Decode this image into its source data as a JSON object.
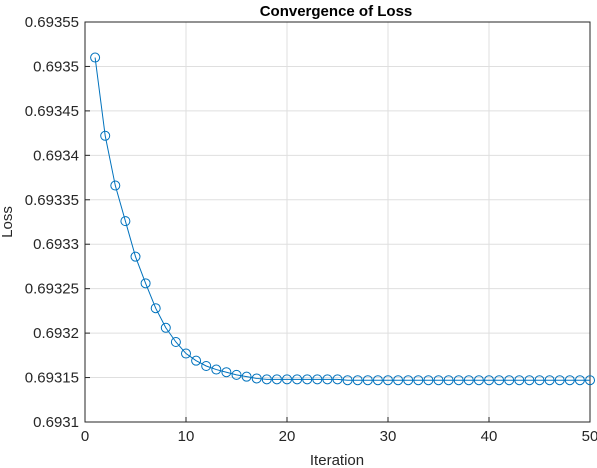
{
  "chart_data": {
    "type": "line",
    "title": "Convergence of Loss",
    "xlabel": "Iteration",
    "ylabel": "Loss",
    "xlim": [
      0,
      50
    ],
    "ylim": [
      0.6931,
      0.69355
    ],
    "xticks": [
      0,
      10,
      20,
      30,
      40,
      50
    ],
    "xtick_labels": [
      "0",
      "10",
      "20",
      "30",
      "40",
      "50"
    ],
    "yticks": [
      0.6931,
      0.69315,
      0.6932,
      0.69325,
      0.6933,
      0.69335,
      0.6934,
      0.69345,
      0.6935,
      0.69355
    ],
    "ytick_labels": [
      "0.6931",
      "0.69315",
      "0.6932",
      "0.69325",
      "0.6933",
      "0.69335",
      "0.6934",
      "0.69345",
      "0.6935",
      "0.69355"
    ],
    "grid": true,
    "marker": "circle",
    "series": [
      {
        "color": "#0072BD",
        "x": [
          1,
          2,
          3,
          4,
          5,
          6,
          7,
          8,
          9,
          10,
          11,
          12,
          13,
          14,
          15,
          16,
          17,
          18,
          19,
          20,
          21,
          22,
          23,
          24,
          25,
          26,
          27,
          28,
          29,
          30,
          31,
          32,
          33,
          34,
          35,
          36,
          37,
          38,
          39,
          40,
          41,
          42,
          43,
          44,
          45,
          46,
          47,
          48,
          49,
          50
        ],
        "values": [
          0.69351,
          0.693422,
          0.693366,
          0.693326,
          0.693286,
          0.693256,
          0.693228,
          0.693206,
          0.69319,
          0.693177,
          0.693169,
          0.693163,
          0.693159,
          0.693156,
          0.693153,
          0.693151,
          0.693149,
          0.693148,
          0.693148,
          0.693148,
          0.693148,
          0.693148,
          0.693148,
          0.693148,
          0.693148,
          0.693147,
          0.693147,
          0.693147,
          0.693147,
          0.693147,
          0.693147,
          0.693147,
          0.693147,
          0.693147,
          0.693147,
          0.693147,
          0.693147,
          0.693147,
          0.693147,
          0.693147,
          0.693147,
          0.693147,
          0.693147,
          0.693147,
          0.693147,
          0.693147,
          0.693147,
          0.693147,
          0.693147,
          0.693147
        ]
      }
    ]
  }
}
